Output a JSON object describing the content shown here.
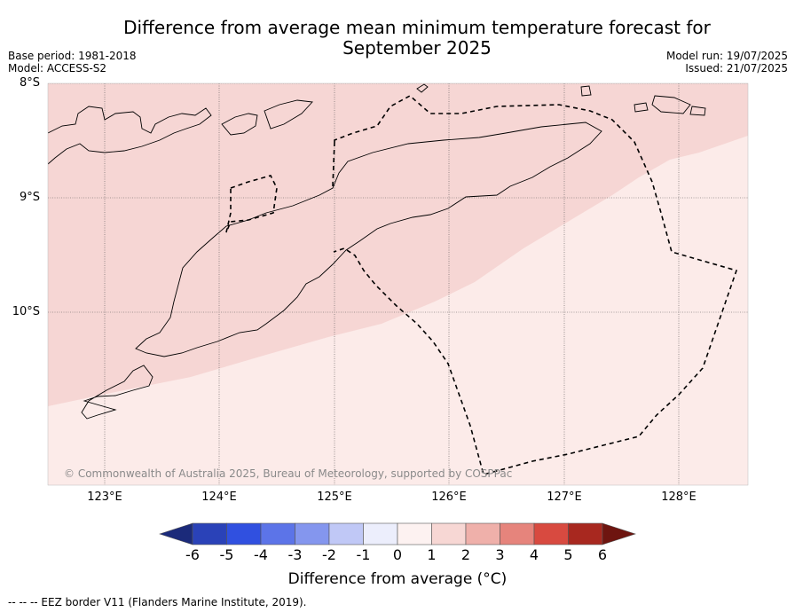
{
  "header": {
    "title_line1": "Difference from average mean minimum temperature forecast for",
    "title_line2": "September 2025",
    "base_period": "Base period: 1981-2018",
    "model": "Model: ACCESS-S2",
    "model_run": "Model run: 19/07/2025",
    "issued": "Issued: 21/07/2025"
  },
  "map": {
    "lat_labels": [
      "8°S",
      "9°S",
      "10°S"
    ],
    "lon_labels": [
      "123°E",
      "124°E",
      "125°E",
      "126°E",
      "127°E",
      "128°E"
    ],
    "copyright": "© Commonwealth of Australia 2025, Bureau of Meteorology, supported by COSPPac",
    "zones": [
      {
        "range": "1 to 2",
        "color": "#f6d6d4"
      },
      {
        "range": "0 to 1",
        "color": "#fcebe9"
      }
    ],
    "coastline_color": "#000000",
    "eez_line_style": "dashed"
  },
  "colorbar": {
    "ticks": [
      "-6",
      "-5",
      "-4",
      "-3",
      "-2",
      "-1",
      "0",
      "1",
      "2",
      "3",
      "4",
      "5",
      "6"
    ],
    "colors": [
      "#1b2a7a",
      "#2a42b8",
      "#3050e0",
      "#5c74e8",
      "#8496ee",
      "#c0c8f6",
      "#eceefc",
      "#fdf2f1",
      "#f7d7d4",
      "#efb0aa",
      "#e6847c",
      "#d84a40",
      "#a8281f",
      "#6e1510"
    ],
    "label": "Difference from average (°C)"
  },
  "footer": {
    "eez_note": "--  --  -- EEZ border V11 (Flanders Marine Institute, 2019)."
  }
}
